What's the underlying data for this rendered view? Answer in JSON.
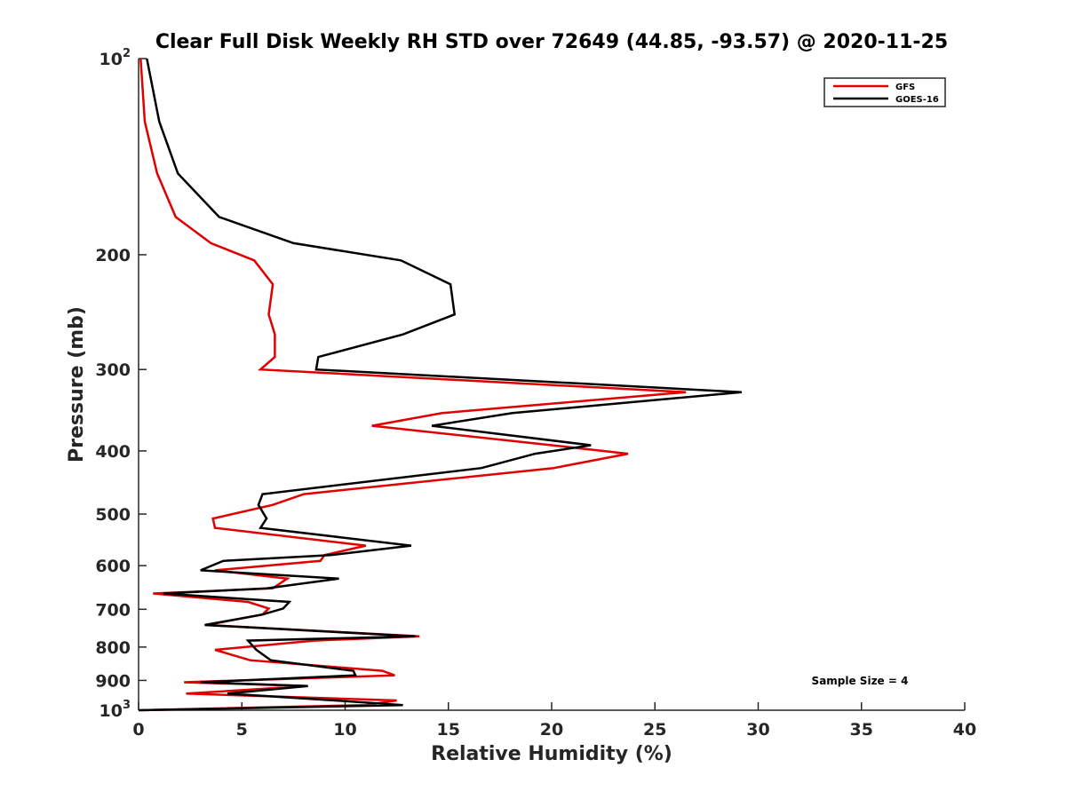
{
  "chart_data": {
    "type": "line",
    "title": "Clear Full Disk Weekly RH STD over 72649 (44.85, -93.57) @ 2020-11-25",
    "xlabel": "Relative Humidity (%)",
    "ylabel": "Pressure (mb)",
    "xlim": [
      0,
      40
    ],
    "ylim": [
      100,
      1000
    ],
    "y_scale": "log",
    "y_reversed": true,
    "grid": false,
    "legend_position": "top-right",
    "x_ticks": [
      0,
      5,
      10,
      15,
      20,
      25,
      30,
      35,
      40
    ],
    "y_ticks": [
      {
        "value": 100,
        "base": "10",
        "exp": "2"
      },
      {
        "value": 200,
        "label": "200"
      },
      {
        "value": 300,
        "label": "300"
      },
      {
        "value": 400,
        "label": "400"
      },
      {
        "value": 500,
        "label": "500"
      },
      {
        "value": 600,
        "label": "600"
      },
      {
        "value": 700,
        "label": "700"
      },
      {
        "value": 800,
        "label": "800"
      },
      {
        "value": 900,
        "label": "900"
      },
      {
        "value": 1000,
        "base": "10",
        "exp": "3"
      }
    ],
    "annotation": "Sample Size = 4",
    "series": [
      {
        "name": "GFS",
        "color": "#e00000",
        "points": [
          [
            0.1,
            100
          ],
          [
            0.3,
            125
          ],
          [
            0.9,
            150
          ],
          [
            1.8,
            175
          ],
          [
            3.5,
            192
          ],
          [
            5.6,
            204
          ],
          [
            6.5,
            222
          ],
          [
            6.3,
            247
          ],
          [
            6.6,
            265
          ],
          [
            6.6,
            287
          ],
          [
            5.9,
            300
          ],
          [
            26.5,
            325
          ],
          [
            14.7,
            350
          ],
          [
            11.3,
            366
          ],
          [
            20.0,
            392
          ],
          [
            23.7,
            404
          ],
          [
            20.1,
            425
          ],
          [
            8.0,
            466
          ],
          [
            6.5,
            484
          ],
          [
            3.6,
            508
          ],
          [
            3.7,
            525
          ],
          [
            11.0,
            559
          ],
          [
            9.0,
            578
          ],
          [
            8.8,
            590
          ],
          [
            3.7,
            610
          ],
          [
            7.2,
            628
          ],
          [
            6.5,
            650
          ],
          [
            0.7,
            662
          ],
          [
            5.3,
            682
          ],
          [
            6.3,
            698
          ],
          [
            6.0,
            713
          ],
          [
            3.3,
            740
          ],
          [
            13.6,
            770
          ],
          [
            8.5,
            782
          ],
          [
            3.7,
            808
          ],
          [
            5.4,
            838
          ],
          [
            11.8,
            870
          ],
          [
            12.4,
            884
          ],
          [
            2.2,
            906
          ],
          [
            8.2,
            918
          ],
          [
            2.3,
            943
          ],
          [
            12.5,
            966
          ],
          [
            11.0,
            982
          ],
          [
            0.1,
            1000
          ]
        ]
      },
      {
        "name": "GOES-16",
        "color": "#000000",
        "points": [
          [
            0.4,
            100
          ],
          [
            1.0,
            125
          ],
          [
            1.9,
            150
          ],
          [
            3.9,
            175
          ],
          [
            7.5,
            192
          ],
          [
            12.7,
            204
          ],
          [
            15.1,
            222
          ],
          [
            15.3,
            247
          ],
          [
            12.8,
            265
          ],
          [
            8.7,
            287
          ],
          [
            8.6,
            300
          ],
          [
            29.2,
            325
          ],
          [
            18.1,
            350
          ],
          [
            14.2,
            366
          ],
          [
            21.9,
            392
          ],
          [
            19.2,
            404
          ],
          [
            16.6,
            425
          ],
          [
            6.0,
            466
          ],
          [
            5.8,
            484
          ],
          [
            6.2,
            508
          ],
          [
            5.9,
            525
          ],
          [
            13.2,
            559
          ],
          [
            9.3,
            578
          ],
          [
            4.1,
            590
          ],
          [
            3.0,
            610
          ],
          [
            9.7,
            628
          ],
          [
            6.2,
            650
          ],
          [
            1.2,
            662
          ],
          [
            7.3,
            682
          ],
          [
            7.0,
            698
          ],
          [
            6.0,
            713
          ],
          [
            3.2,
            740
          ],
          [
            13.4,
            770
          ],
          [
            5.3,
            782
          ],
          [
            5.7,
            808
          ],
          [
            6.4,
            838
          ],
          [
            10.4,
            870
          ],
          [
            10.5,
            884
          ],
          [
            3.0,
            906
          ],
          [
            8.2,
            918
          ],
          [
            4.3,
            943
          ],
          [
            9.5,
            966
          ],
          [
            12.8,
            982
          ],
          [
            0.0,
            1000
          ]
        ]
      }
    ]
  }
}
